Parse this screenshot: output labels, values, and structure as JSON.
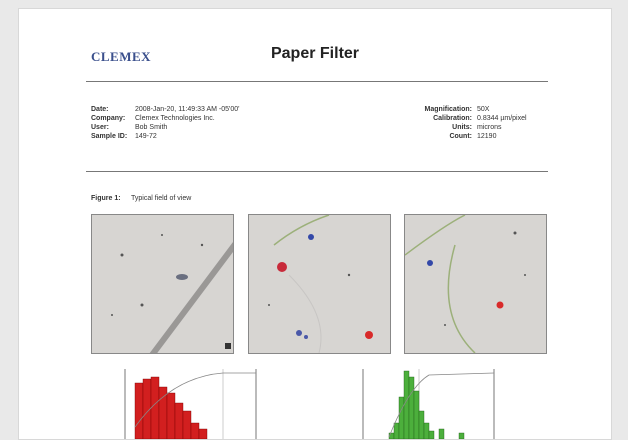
{
  "header": {
    "logo": "CLEMEX",
    "title": "Paper Filter"
  },
  "info_left": [
    {
      "label": "Date:",
      "value": "2008-Jan-20, 11:49:33 AM -05'00'"
    },
    {
      "label": "Company:",
      "value": "Clemex Technologies Inc."
    },
    {
      "label": "User:",
      "value": "Bob Smith"
    },
    {
      "label": "Sample ID:",
      "value": "149-72"
    }
  ],
  "info_right": [
    {
      "label": "Magnification:",
      "value": "50X"
    },
    {
      "label": "Calibration:",
      "value": "0.8344 µm/pixel"
    },
    {
      "label": "Units:",
      "value": "microns"
    },
    {
      "label": "Count:",
      "value": "12190"
    }
  ],
  "figure": {
    "label": "Figure 1:",
    "caption": "Typical field of view"
  }
}
